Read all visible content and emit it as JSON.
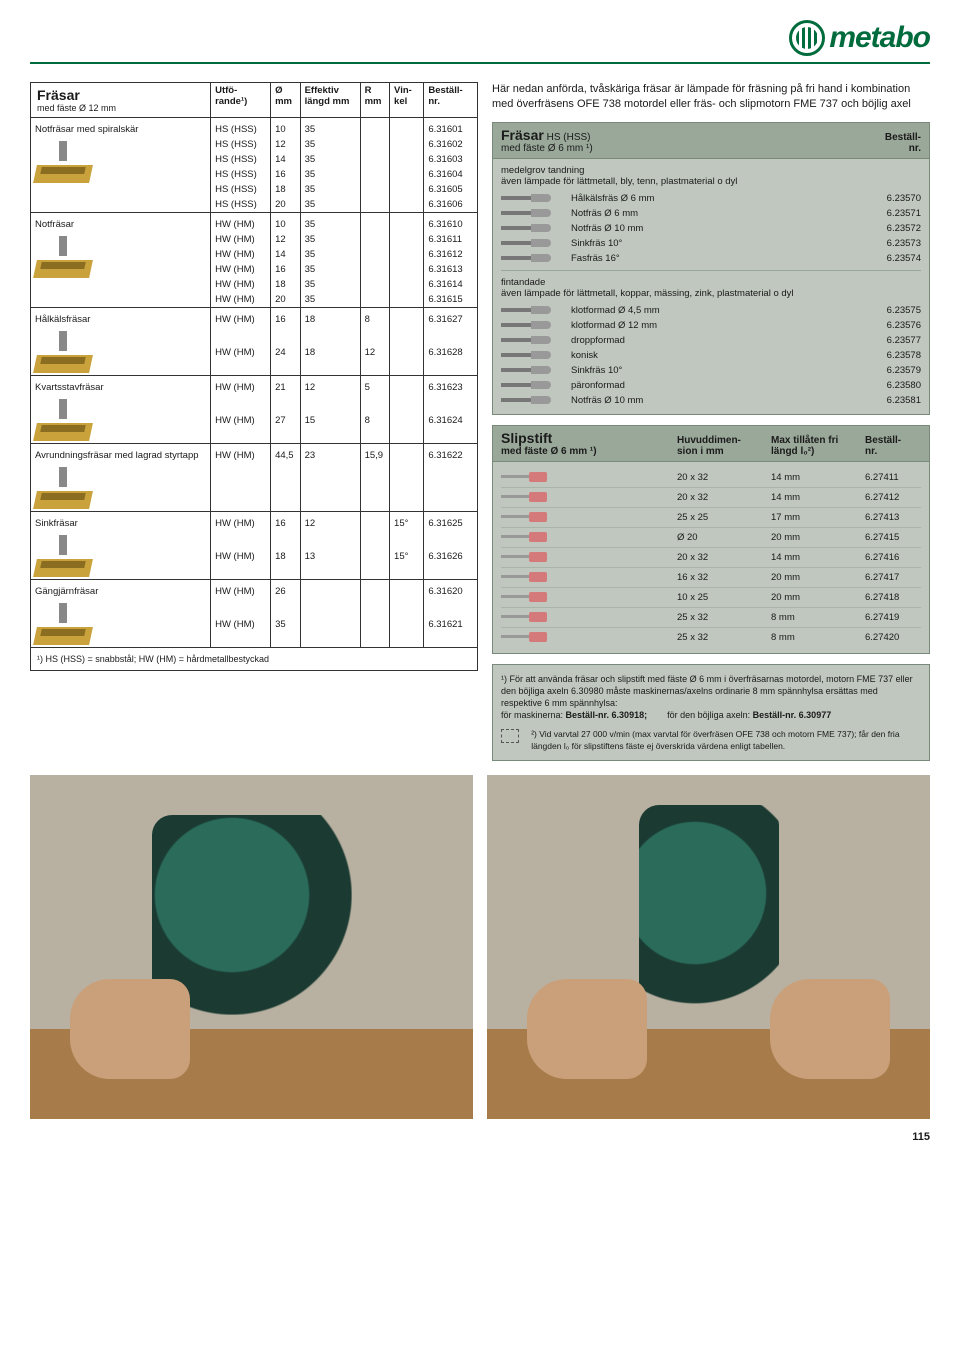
{
  "brand": "metabo",
  "page_number": "115",
  "intro_text": "Här nedan anförda, tvåskäriga fräsar är lämpade för fräsning på fri hand i kombination med överfräsens OFE 738 motordel eller fräs- och slipmotorn FME 737 och böjlig axel",
  "main_table": {
    "title": "Fräsar",
    "subtitle": "med fäste Ø 12 mm",
    "headers": {
      "utf": "Utfö-\nrande¹)",
      "d": "Ø\nmm",
      "len": "Effektiv\nlängd mm",
      "r": "R\nmm",
      "vin": "Vin-\nkel",
      "nr": "Beställ-\nnr."
    },
    "groups": [
      {
        "name": "Notfräsar med spiralskär",
        "rows": [
          {
            "utf": "HS (HSS)",
            "d": "10",
            "len": "35",
            "r": "",
            "vin": "",
            "nr": "6.31601"
          },
          {
            "utf": "HS (HSS)",
            "d": "12",
            "len": "35",
            "r": "",
            "vin": "",
            "nr": "6.31602"
          },
          {
            "utf": "HS (HSS)",
            "d": "14",
            "len": "35",
            "r": "",
            "vin": "",
            "nr": "6.31603"
          },
          {
            "utf": "HS (HSS)",
            "d": "16",
            "len": "35",
            "r": "",
            "vin": "",
            "nr": "6.31604"
          },
          {
            "utf": "HS (HSS)",
            "d": "18",
            "len": "35",
            "r": "",
            "vin": "",
            "nr": "6.31605"
          },
          {
            "utf": "HS (HSS)",
            "d": "20",
            "len": "35",
            "r": "",
            "vin": "",
            "nr": "6.31606"
          }
        ]
      },
      {
        "name": "Notfräsar",
        "rows": [
          {
            "utf": "HW (HM)",
            "d": "10",
            "len": "35",
            "r": "",
            "vin": "",
            "nr": "6.31610"
          },
          {
            "utf": "HW (HM)",
            "d": "12",
            "len": "35",
            "r": "",
            "vin": "",
            "nr": "6.31611"
          },
          {
            "utf": "HW (HM)",
            "d": "14",
            "len": "35",
            "r": "",
            "vin": "",
            "nr": "6.31612"
          },
          {
            "utf": "HW (HM)",
            "d": "16",
            "len": "35",
            "r": "",
            "vin": "",
            "nr": "6.31613"
          },
          {
            "utf": "HW (HM)",
            "d": "18",
            "len": "35",
            "r": "",
            "vin": "",
            "nr": "6.31614"
          },
          {
            "utf": "HW (HM)",
            "d": "20",
            "len": "35",
            "r": "",
            "vin": "",
            "nr": "6.31615"
          }
        ]
      },
      {
        "name": "Hålkälsfräsar",
        "rows": [
          {
            "utf": "HW (HM)",
            "d": "16",
            "len": "18",
            "r": "8",
            "vin": "",
            "nr": "6.31627"
          },
          {
            "utf": "HW (HM)",
            "d": "24",
            "len": "18",
            "r": "12",
            "vin": "",
            "nr": "6.31628"
          }
        ]
      },
      {
        "name": "Kvartsstavfräsar",
        "rows": [
          {
            "utf": "HW (HM)",
            "d": "21",
            "len": "12",
            "r": "5",
            "vin": "",
            "nr": "6.31623"
          },
          {
            "utf": "HW (HM)",
            "d": "27",
            "len": "15",
            "r": "8",
            "vin": "",
            "nr": "6.31624"
          }
        ]
      },
      {
        "name": "Avrundningsfräsar med lagrad styrtapp",
        "rows": [
          {
            "utf": "HW (HM)",
            "d": "44,5",
            "len": "23",
            "r": "15,9",
            "vin": "",
            "nr": "6.31622"
          }
        ]
      },
      {
        "name": "Sinkfräsar",
        "rows": [
          {
            "utf": "HW (HM)",
            "d": "16",
            "len": "12",
            "r": "",
            "vin": "15°",
            "nr": "6.31625"
          },
          {
            "utf": "HW (HM)",
            "d": "18",
            "len": "13",
            "r": "",
            "vin": "15°",
            "nr": "6.31626"
          }
        ]
      },
      {
        "name": "Gängjärnfräsar",
        "rows": [
          {
            "utf": "HW (HM)",
            "d": "26",
            "len": "",
            "r": "",
            "vin": "",
            "nr": "6.31620"
          },
          {
            "utf": "HW (HM)",
            "d": "35",
            "len": "",
            "r": "",
            "vin": "",
            "nr": "6.31621"
          }
        ]
      }
    ],
    "footnote": "¹) HS (HSS) = snabbstål; HW (HM) = hårdmetallbestyckad"
  },
  "panel1": {
    "title": "Fräsar",
    "title_sub": "HS (HSS)",
    "subtitle": "med fäste Ø 6 mm ¹)",
    "col_nr": "Beställ-\nnr.",
    "section1_label": "medelgrov tandning",
    "section1_note": "även lämpade för lättmetall, bly, tenn, plastmaterial o dyl",
    "rows1": [
      {
        "desc": "Hålkälsfräs Ø 6 mm",
        "nr": "6.23570"
      },
      {
        "desc": "Notfräs Ø 6 mm",
        "nr": "6.23571"
      },
      {
        "desc": "Notfräs Ø 10 mm",
        "nr": "6.23572"
      },
      {
        "desc": "Sinkfräs 10°",
        "nr": "6.23573"
      },
      {
        "desc": "Fasfräs 16°",
        "nr": "6.23574"
      }
    ],
    "section2_label": "fintandade",
    "section2_note": "även lämpade för lättmetall, koppar, mässing, zink, plastmaterial o dyl",
    "rows2": [
      {
        "desc": "klotformad Ø 4,5 mm",
        "nr": "6.23575"
      },
      {
        "desc": "klotformad Ø 12 mm",
        "nr": "6.23576"
      },
      {
        "desc": "droppformad",
        "nr": "6.23577"
      },
      {
        "desc": "konisk",
        "nr": "6.23578"
      },
      {
        "desc": "Sinkfräs 10°",
        "nr": "6.23579"
      },
      {
        "desc": "päronformad",
        "nr": "6.23580"
      },
      {
        "desc": "Notfräs Ø 10 mm",
        "nr": "6.23581"
      }
    ]
  },
  "panel2": {
    "title": "Slipstift",
    "subtitle": "med fäste Ø 6 mm ¹)",
    "h_dim": "Huvuddimen-\nsion i mm",
    "h_len": "Max tillåten fri\nlängd l₀²)",
    "h_nr": "Beställ-\nnr.",
    "rows": [
      {
        "dim": "20 x 32",
        "len": "14 mm",
        "nr": "6.27411"
      },
      {
        "dim": "20 x 32",
        "len": "14 mm",
        "nr": "6.27412"
      },
      {
        "dim": "25 x 25",
        "len": "17 mm",
        "nr": "6.27413"
      },
      {
        "dim": "Ø 20",
        "len": "20 mm",
        "nr": "6.27415"
      },
      {
        "dim": "20 x 32",
        "len": "14 mm",
        "nr": "6.27416"
      },
      {
        "dim": "16 x 32",
        "len": "20 mm",
        "nr": "6.27417"
      },
      {
        "dim": "10 x 25",
        "len": "20 mm",
        "nr": "6.27418"
      },
      {
        "dim": "25 x 32",
        "len": "8 mm",
        "nr": "6.27419"
      },
      {
        "dim": "25 x 32",
        "len": "8 mm",
        "nr": "6.27420"
      }
    ]
  },
  "notes": {
    "n1": "¹) För att använda fräsar och slipstift med fäste Ø 6 mm i överfräsarnas motordel, motorn FME 737 eller den böjliga axeln 6.30980 måste maskinernas/axelns ordinarie 8 mm spännhylsa ersättas med respektive 6 mm spännhylsa:",
    "n1b_a": "för maskinerna: ",
    "n1b_a_strong": "Beställ-nr. 6.30918;",
    "n1b_b": "för den böjliga axeln: ",
    "n1b_b_strong": "Beställ-nr. 6.30977",
    "n2": "²) Vid varvtal 27 000 v/min (max varvtal för överfräsen OFE 738 och motorn FME 737); får den fria längden l₀ för slipstiftens fäste ej överskrida värdena enligt tabellen."
  }
}
